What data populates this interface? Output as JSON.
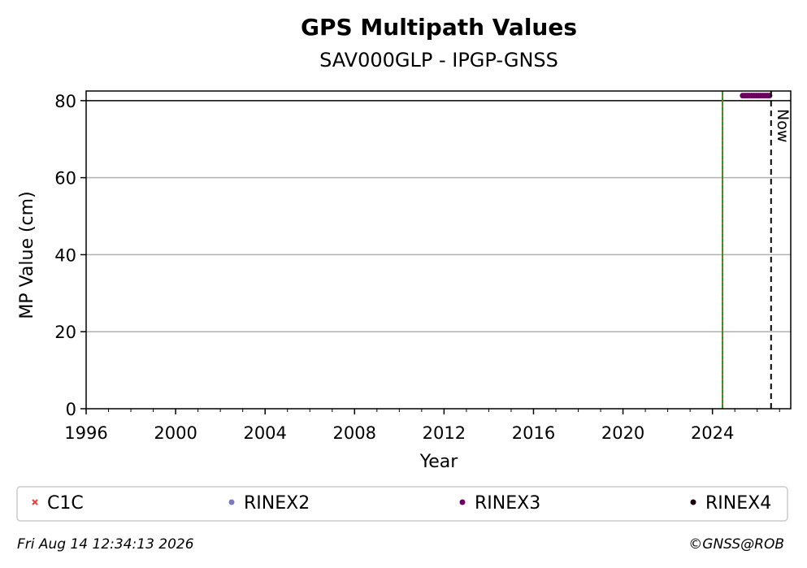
{
  "chart_data": {
    "type": "scatter",
    "title": "GPS Multipath Values",
    "subtitle": "SAV000GLP - IPGP-GNSS",
    "xlabel": "Year",
    "ylabel": "MP Value (cm)",
    "xlim": [
      1996,
      2027.5
    ],
    "ylim": [
      0,
      82.5
    ],
    "x_ticks": [
      1996,
      2000,
      2004,
      2008,
      2012,
      2016,
      2020,
      2024
    ],
    "y_ticks": [
      0,
      20,
      40,
      60,
      80
    ],
    "grid": "y",
    "threshold_line": 80,
    "event_line_year": 2024.45,
    "now_year": 2026.62,
    "now_label": "Now",
    "series": [
      {
        "name": "C1C",
        "color": "#e8413a",
        "marker": "x",
        "x": [],
        "y": []
      },
      {
        "name": "RINEX2",
        "color": "#7b7bc0",
        "marker": "o",
        "x": [],
        "y": []
      },
      {
        "name": "RINEX3",
        "color": "#6a0060",
        "marker": "o",
        "x": [
          2025.35,
          2025.45,
          2025.55,
          2025.65,
          2025.75,
          2025.85,
          2025.95,
          2026.05,
          2026.15,
          2026.25,
          2026.35,
          2026.45,
          2026.55
        ],
        "y": [
          81.3,
          81.3,
          81.3,
          81.3,
          81.3,
          81.3,
          81.3,
          81.3,
          81.3,
          81.3,
          81.3,
          81.3,
          81.3
        ]
      },
      {
        "name": "RINEX4",
        "color": "#1a0010",
        "marker": "o",
        "x": [],
        "y": []
      }
    ],
    "legend_placement": "bottom"
  },
  "footer": {
    "timestamp": "Fri Aug 14 12:34:13 2026",
    "copyright": "©GNSS@ROB"
  }
}
